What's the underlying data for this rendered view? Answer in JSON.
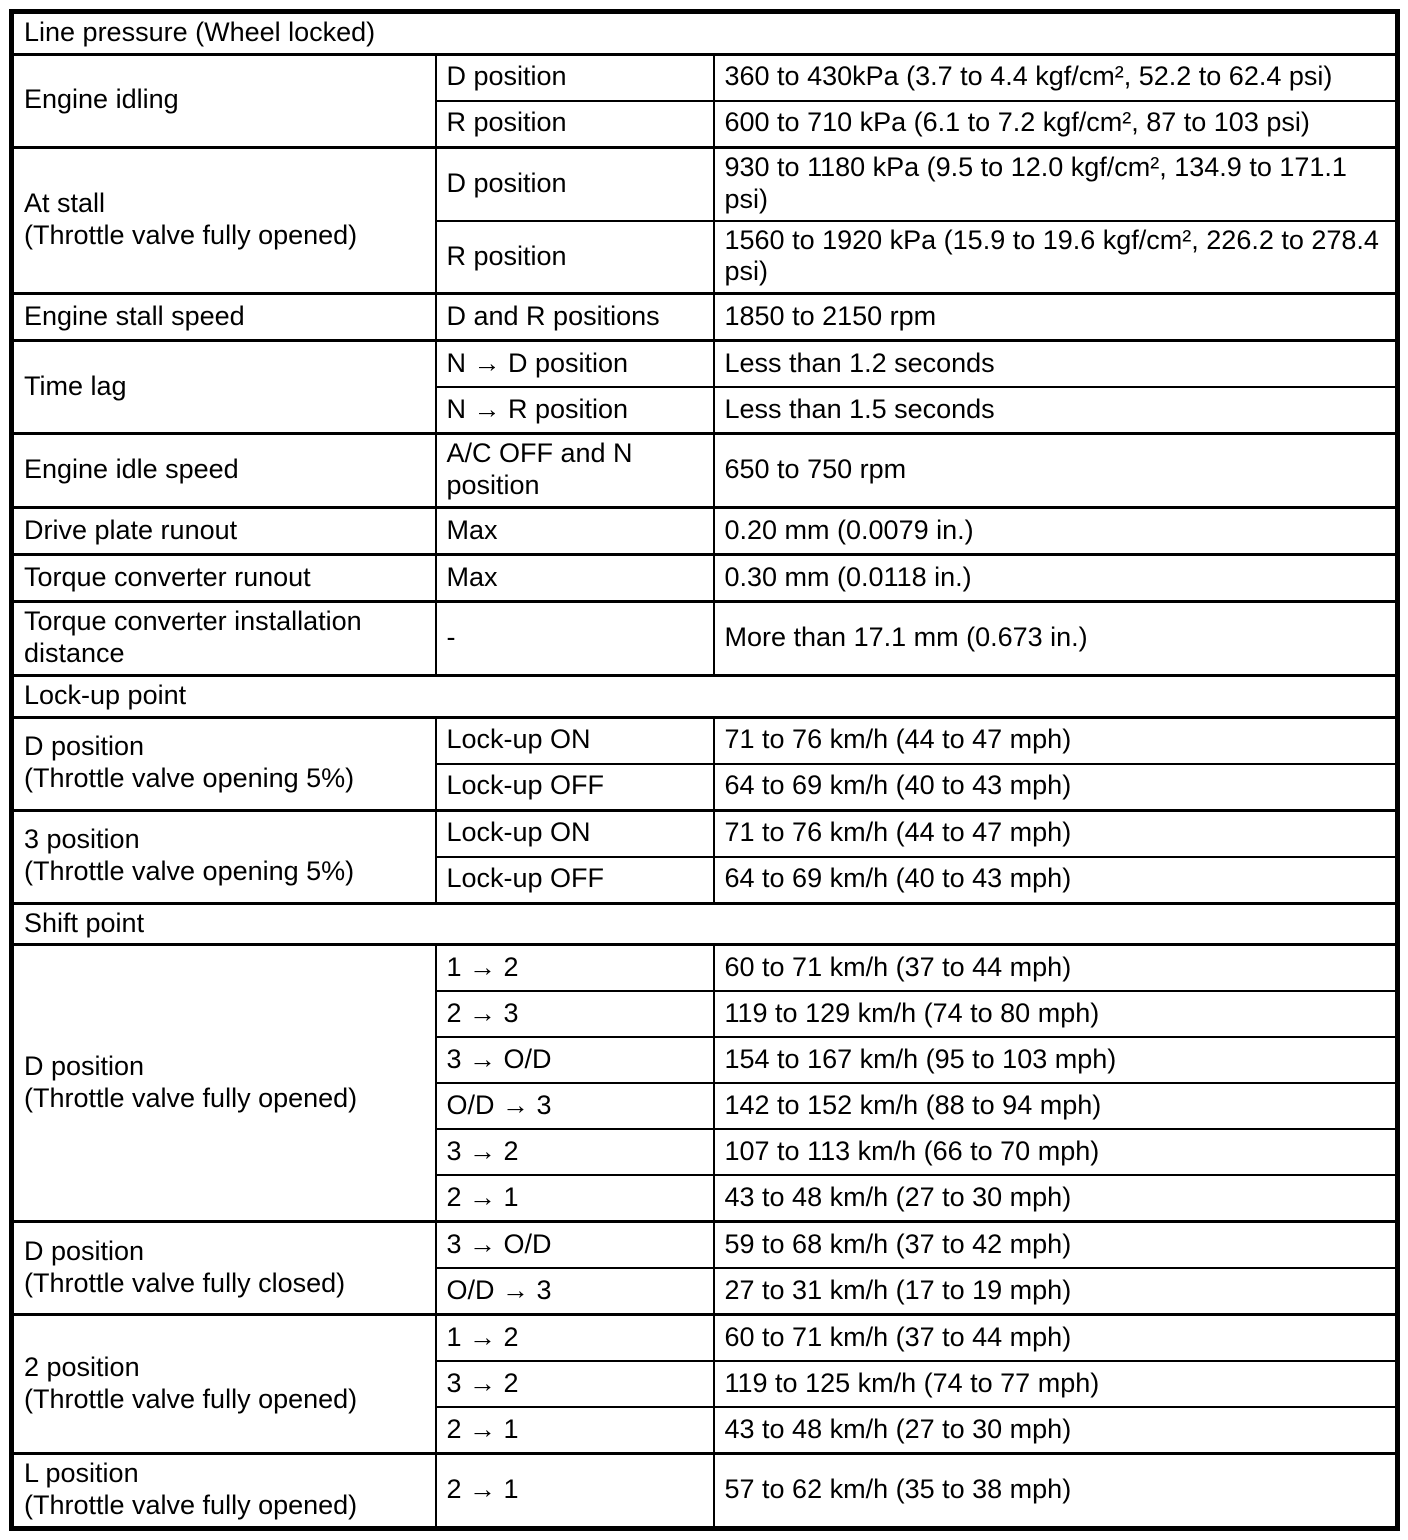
{
  "table": {
    "sections": [
      {
        "title": "Line pressure (Wheel locked)",
        "groups": [
          {
            "label": "Engine idling",
            "rows": [
              {
                "param": "D position",
                "value": "360 to 430kPa (3.7 to 4.4 kgf/cm², 52.2 to 62.4 psi)"
              },
              {
                "param": "R position",
                "value": "600 to 710 kPa (6.1 to 7.2 kgf/cm², 87 to 103 psi)"
              }
            ]
          },
          {
            "label": "At stall\n(Throttle valve fully opened)",
            "rows": [
              {
                "param": "D position",
                "value": "930 to 1180 kPa (9.5 to 12.0 kgf/cm², 134.9 to 171.1 psi)"
              },
              {
                "param": "R position",
                "value": "1560 to 1920 kPa (15.9 to 19.6 kgf/cm², 226.2 to 278.4 psi)"
              }
            ]
          },
          {
            "label": "Engine stall speed",
            "rows": [
              {
                "param": "D and R positions",
                "value": "1850 to 2150 rpm"
              }
            ]
          },
          {
            "label": "Time lag",
            "rows": [
              {
                "param": "N → D position",
                "value": "Less than 1.2 seconds"
              },
              {
                "param": "N → R position",
                "value": "Less than 1.5 seconds"
              }
            ]
          },
          {
            "label": "Engine idle speed",
            "rows": [
              {
                "param": "A/C OFF and N position",
                "value": "650 to 750 rpm"
              }
            ]
          },
          {
            "label": "Drive plate runout",
            "rows": [
              {
                "param": "Max",
                "value": "0.20 mm (0.0079 in.)"
              }
            ]
          },
          {
            "label": "Torque converter runout",
            "rows": [
              {
                "param": "Max",
                "value": "0.30 mm (0.0118 in.)"
              }
            ]
          },
          {
            "label": "Torque converter installation distance",
            "rows": [
              {
                "param": "-",
                "value": "More than 17.1 mm (0.673 in.)"
              }
            ]
          }
        ]
      },
      {
        "title": "Lock-up point",
        "groups": [
          {
            "label": "D position\n(Throttle valve opening 5%)",
            "rows": [
              {
                "param": "Lock-up ON",
                "value": "71 to 76 km/h (44 to 47 mph)"
              },
              {
                "param": "Lock-up OFF",
                "value": "64 to 69 km/h (40 to 43 mph)"
              }
            ]
          },
          {
            "label": "3 position\n(Throttle valve opening 5%)",
            "rows": [
              {
                "param": "Lock-up ON",
                "value": "71 to 76 km/h (44 to 47 mph)"
              },
              {
                "param": "Lock-up OFF",
                "value": "64 to 69 km/h (40 to 43 mph)"
              }
            ]
          }
        ]
      },
      {
        "title": "Shift point",
        "groups": [
          {
            "label": "D position\n(Throttle valve fully opened)",
            "rows": [
              {
                "param": "1 → 2",
                "value": "60 to 71 km/h (37 to 44 mph)"
              },
              {
                "param": "2 → 3",
                "value": "119 to 129 km/h (74 to 80 mph)"
              },
              {
                "param": "3 → O/D",
                "value": "154 to 167 km/h (95 to 103 mph)"
              },
              {
                "param": "O/D → 3",
                "value": "142 to 152 km/h (88 to 94 mph)"
              },
              {
                "param": "3 → 2",
                "value": "107 to 113 km/h (66 to 70 mph)"
              },
              {
                "param": "2 → 1",
                "value": "43 to 48 km/h (27 to 30 mph)"
              }
            ]
          },
          {
            "label": "D position\n(Throttle valve fully closed)",
            "rows": [
              {
                "param": "3 → O/D",
                "value": "59 to 68 km/h (37 to 42 mph)"
              },
              {
                "param": "O/D → 3",
                "value": "27 to 31 km/h (17 to 19 mph)"
              }
            ]
          },
          {
            "label": "2 position\n(Throttle valve fully opened)",
            "rows": [
              {
                "param": "1 → 2",
                "value": "60 to 71 km/h (37 to 44 mph)"
              },
              {
                "param": "3 → 2",
                "value": "119 to 125 km/h (74 to 77 mph)"
              },
              {
                "param": "2 → 1",
                "value": "43 to 48 km/h (27 to 30 mph)"
              }
            ]
          },
          {
            "label": "L position\n(Throttle valve fully opened)",
            "rows": [
              {
                "param": "2 → 1",
                "value": "57 to 62 km/h (35 to 38 mph)"
              }
            ]
          }
        ]
      }
    ]
  }
}
